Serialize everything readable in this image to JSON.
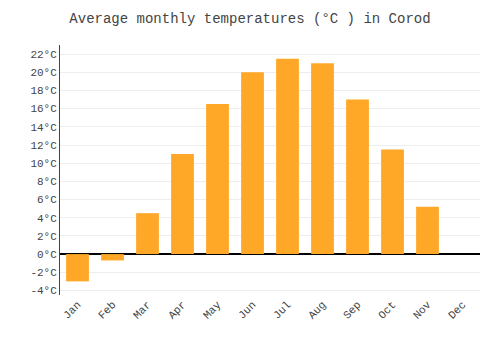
{
  "chart_data": {
    "type": "bar",
    "title": "Average monthly temperatures (°C ) in Corod",
    "categories": [
      "Jan",
      "Feb",
      "Mar",
      "Apr",
      "May",
      "Jun",
      "Jul",
      "Aug",
      "Sep",
      "Oct",
      "Nov",
      "Dec"
    ],
    "values": [
      -3.0,
      -0.7,
      4.5,
      11.0,
      16.5,
      20.0,
      21.5,
      21.0,
      17.0,
      11.5,
      5.2,
      0.0
    ],
    "color": "#FFA726",
    "ylim": [
      -4.5,
      23
    ],
    "yticks": [
      {
        "value": -4,
        "label": "-4°C"
      },
      {
        "value": -2,
        "label": "-2°C"
      },
      {
        "value": 0,
        "label": "0°C"
      },
      {
        "value": 2,
        "label": "2°C"
      },
      {
        "value": 4,
        "label": "4°C"
      },
      {
        "value": 6,
        "label": "6°C"
      },
      {
        "value": 8,
        "label": "8°C"
      },
      {
        "value": 10,
        "label": "10°C"
      },
      {
        "value": 12,
        "label": "12°C"
      },
      {
        "value": 14,
        "label": "14°C"
      },
      {
        "value": 16,
        "label": "16°C"
      },
      {
        "value": 18,
        "label": "18°C"
      },
      {
        "value": 20,
        "label": "20°C"
      },
      {
        "value": 22,
        "label": "22°C"
      }
    ],
    "grid": true
  }
}
